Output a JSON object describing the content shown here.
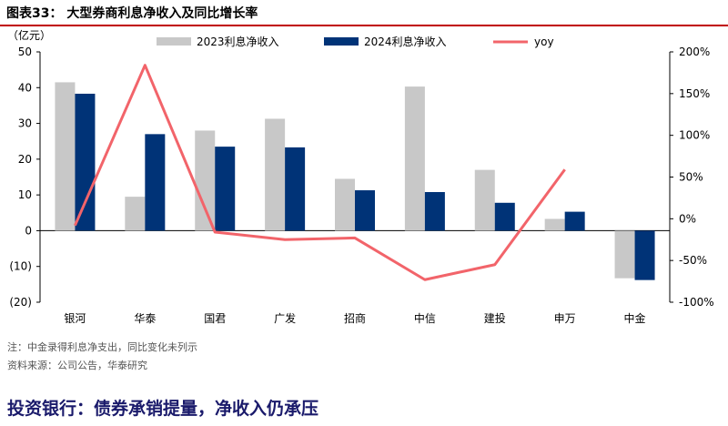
{
  "page": {
    "figure_title": "图表33：  大型券商利息净收入及同比增长率",
    "note": "注：中金录得利息净支出，同比变化未列示",
    "source": "资料来源：公司公告，华泰研究",
    "bottom_heading": "投资银行：债券承销提量，净收入仍承压"
  },
  "colors": {
    "series_2023": "#c8c8c8",
    "series_2024": "#003377",
    "yoy": "#f2646a",
    "title_rule": "#c00000"
  },
  "chart_data": {
    "type": "bar",
    "unit_label": "（亿元）",
    "categories": [
      "银河",
      "华泰",
      "国君",
      "广发",
      "招商",
      "中信",
      "建投",
      "申万",
      "中金"
    ],
    "series": [
      {
        "name": "2023利息净收入",
        "values": [
          41.5,
          9.5,
          28.0,
          31.3,
          14.5,
          40.3,
          17.0,
          3.3,
          -13.3
        ]
      },
      {
        "name": "2024利息净收入",
        "values": [
          38.3,
          27.0,
          23.5,
          23.3,
          11.3,
          10.8,
          7.8,
          5.3,
          -13.8
        ]
      }
    ],
    "line_series": [
      {
        "name": "yoy",
        "axis": "right",
        "values": [
          -8,
          184,
          -16,
          -25,
          -23,
          -73,
          -55,
          59,
          null
        ]
      }
    ],
    "ylim_left": [
      -20,
      50
    ],
    "yticks_left": [
      -20,
      -10,
      0,
      10,
      20,
      30,
      40,
      50
    ],
    "ytick_labels_left": [
      "(20)",
      "(10)",
      "0",
      "10",
      "20",
      "30",
      "40",
      "50"
    ],
    "ylim_right": [
      -100,
      200
    ],
    "yticks_right": [
      -100,
      -50,
      0,
      50,
      100,
      150,
      200
    ],
    "ytick_labels_right": [
      "-100%",
      "-50%",
      "0%",
      "50%",
      "100%",
      "150%",
      "200%"
    ],
    "legend_position": "top",
    "grid": false
  }
}
